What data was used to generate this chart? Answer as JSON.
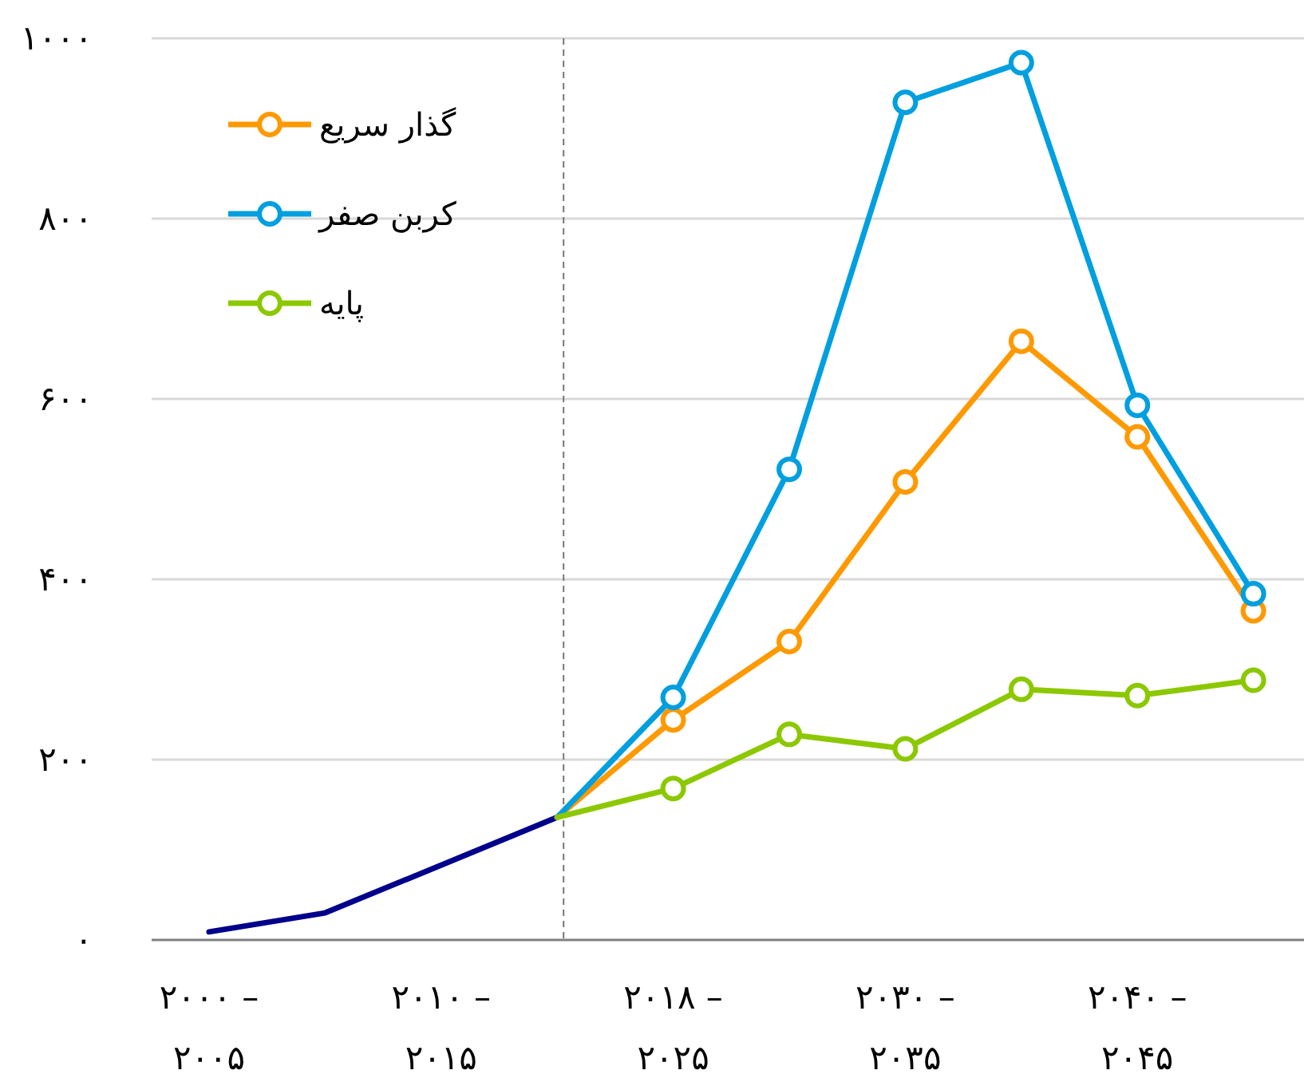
{
  "chart_data": {
    "type": "line",
    "categories": [
      "۲۰۰۰ –\n۲۰۰۵",
      null,
      "۲۰۱۰ –\n۲۰۱۵",
      null,
      "۲۰۱۸ –\n۲۰۲۵",
      null,
      "۲۰۳۰ –\n۲۰۳۵",
      null,
      "۲۰۴۰ –\n۲۰۴۵",
      null
    ],
    "series": [
      {
        "color": "#00008b",
        "marker": "none",
        "values": [
          9,
          30,
          83,
          136,
          null,
          null,
          null,
          null,
          null,
          null
        ]
      },
      {
        "name": "گذار سریع",
        "color": "#ff9900",
        "marker": "circle",
        "values": [
          null,
          null,
          null,
          136,
          244,
          331,
          508,
          664,
          558,
          365
        ]
      },
      {
        "name": "کربن صفر",
        "color": "#009fdf",
        "marker": "circle",
        "values": [
          null,
          null,
          null,
          136,
          269,
          522,
          929,
          973,
          593,
          384
        ]
      },
      {
        "name": "پایه",
        "color": "#8cc800",
        "marker": "circle",
        "values": [
          null,
          null,
          null,
          136,
          168,
          228,
          212,
          278,
          271,
          288
        ]
      }
    ],
    "ylim": [
      0,
      1000
    ],
    "yticks": [
      {
        "value": 0,
        "label": "۰"
      },
      {
        "value": 200,
        "label": "۲۰۰"
      },
      {
        "value": 400,
        "label": "۴۰۰"
      },
      {
        "value": 600,
        "label": "۶۰۰"
      },
      {
        "value": 800,
        "label": "۸۰۰"
      },
      {
        "value": 1000,
        "label": "۱۰۰۰"
      }
    ],
    "grid": "y",
    "legend": "top left"
  }
}
